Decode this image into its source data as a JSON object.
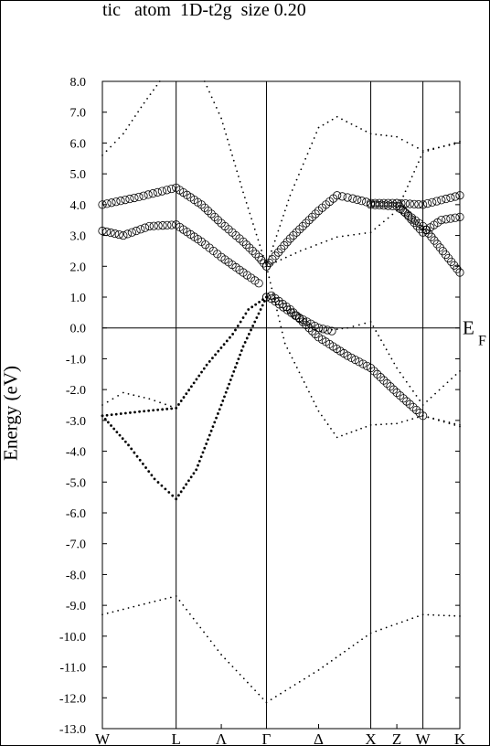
{
  "title": "tic   atom  1D-t2g  size 0.20",
  "chart_data": {
    "type": "scatter",
    "title": "tic   atom  1D-t2g  size 0.20",
    "ylabel": "Energy (eV)",
    "ylim": [
      -13.0,
      8.0
    ],
    "yticks": [
      "8.0",
      "7.0",
      "6.0",
      "5.0",
      "4.0",
      "3.0",
      "2.0",
      "1.0",
      "0.0",
      "-1.0",
      "-2.0",
      "-3.0",
      "-4.0",
      "-5.0",
      "-6.0",
      "-7.0",
      "-8.0",
      "-9.0",
      "-10.0",
      "-11.0",
      "-12.0",
      "-13.0"
    ],
    "kpoints": [
      {
        "label": "W",
        "x": 0.0
      },
      {
        "label": "L",
        "x": 0.707
      },
      {
        "label": "Λ",
        "x": 1.14
      },
      {
        "label": "Γ",
        "x": 1.573
      },
      {
        "label": "Δ",
        "x": 2.073
      },
      {
        "label": "X",
        "x": 2.573
      },
      {
        "label": "Z",
        "x": 2.823
      },
      {
        "label": "W",
        "x": 3.073
      },
      {
        "label": "K",
        "x": 3.427
      }
    ],
    "fermi_level": {
      "label_main": "E",
      "label_sub": "F",
      "energy": 0.0
    },
    "series": [
      {
        "style": "small-dots",
        "points": [
          [
            0,
            -9.3
          ],
          [
            0.35,
            -9.0
          ],
          [
            0.707,
            -8.7
          ],
          [
            1.14,
            -10.6
          ],
          [
            1.573,
            -12.15
          ],
          [
            2.073,
            -11.1
          ],
          [
            2.573,
            -9.9
          ],
          [
            2.823,
            -9.6
          ],
          [
            3.073,
            -9.3
          ],
          [
            3.427,
            -9.35
          ]
        ]
      },
      {
        "style": "small-dots",
        "points": [
          [
            0,
            5.6
          ],
          [
            0.2,
            6.3
          ],
          [
            0.4,
            7.3
          ],
          [
            0.55,
            8.0
          ]
        ]
      },
      {
        "style": "small-dots",
        "points": [
          [
            0.98,
            8.0
          ],
          [
            1.14,
            6.8
          ],
          [
            1.35,
            4.4
          ],
          [
            1.573,
            2.0
          ],
          [
            1.8,
            4.3
          ],
          [
            2.073,
            6.5
          ],
          [
            2.25,
            6.85
          ],
          [
            2.573,
            6.3
          ],
          [
            2.823,
            6.2
          ],
          [
            3.073,
            5.75
          ],
          [
            3.427,
            6.0
          ]
        ]
      },
      {
        "style": "small-dots",
        "points": [
          [
            1.573,
            2.0
          ],
          [
            1.9,
            2.5
          ],
          [
            2.25,
            2.95
          ],
          [
            2.573,
            3.1
          ],
          [
            2.823,
            3.8
          ],
          [
            3.073,
            5.7
          ],
          [
            3.427,
            6.05
          ]
        ]
      },
      {
        "style": "small-dots",
        "points": [
          [
            1.573,
            2.0
          ],
          [
            1.75,
            -0.5
          ],
          [
            2.073,
            -2.7
          ],
          [
            2.25,
            -3.55
          ],
          [
            2.573,
            -3.15
          ],
          [
            2.823,
            -3.1
          ],
          [
            3.073,
            -2.85
          ],
          [
            3.427,
            -3.2
          ]
        ]
      },
      {
        "style": "small-dots",
        "points": [
          [
            2.1,
            -0.1
          ],
          [
            2.35,
            0.0
          ],
          [
            2.573,
            0.2
          ],
          [
            2.823,
            -1.3
          ],
          [
            3.073,
            -2.5
          ],
          [
            3.427,
            -1.4
          ]
        ]
      },
      {
        "style": "small-dots",
        "points": [
          [
            0,
            -2.5
          ],
          [
            0.2,
            -2.1
          ],
          [
            0.45,
            -2.3
          ],
          [
            0.707,
            -2.6
          ]
        ]
      },
      {
        "style": "medium-dots",
        "points": [
          [
            0,
            -2.85
          ],
          [
            0.4,
            -2.7
          ],
          [
            0.707,
            -2.6
          ],
          [
            1.0,
            -1.2
          ],
          [
            1.25,
            -0.2
          ],
          [
            1.4,
            0.6
          ],
          [
            1.573,
            1.0
          ]
        ]
      },
      {
        "style": "medium-dots",
        "points": [
          [
            0,
            -2.85
          ],
          [
            0.25,
            -3.8
          ],
          [
            0.5,
            -4.9
          ],
          [
            0.707,
            -5.55
          ],
          [
            0.9,
            -4.6
          ],
          [
            1.14,
            -2.5
          ],
          [
            1.35,
            -0.6
          ],
          [
            1.573,
            1.0
          ]
        ]
      },
      {
        "style": "small-dots",
        "points": [
          [
            3.073,
            -2.85
          ],
          [
            3.427,
            -3.15
          ]
        ]
      },
      {
        "style": "circles",
        "points": [
          [
            0,
            4.0
          ],
          [
            0.35,
            4.25
          ],
          [
            0.707,
            4.55
          ],
          [
            0.95,
            4.0
          ],
          [
            1.14,
            3.4
          ],
          [
            1.35,
            2.8
          ],
          [
            1.5,
            2.3
          ],
          [
            1.573,
            2.0
          ]
        ]
      },
      {
        "style": "circles",
        "points": [
          [
            0,
            3.15
          ],
          [
            0.2,
            3.0
          ],
          [
            0.45,
            3.3
          ],
          [
            0.707,
            3.35
          ],
          [
            0.95,
            2.8
          ],
          [
            1.14,
            2.3
          ],
          [
            1.35,
            1.8
          ],
          [
            1.5,
            1.45
          ]
        ]
      },
      {
        "style": "circles",
        "points": [
          [
            1.573,
            1.0
          ],
          [
            1.62,
            1.05
          ],
          [
            1.8,
            0.6
          ],
          [
            2.073,
            -0.3
          ],
          [
            2.35,
            -0.9
          ],
          [
            2.573,
            -1.3
          ],
          [
            2.823,
            -2.1
          ],
          [
            3.073,
            -2.85
          ]
        ]
      },
      {
        "style": "circles",
        "points": [
          [
            1.573,
            1.0
          ],
          [
            1.62,
            0.95
          ],
          [
            1.85,
            0.4
          ],
          [
            2.073,
            0.0
          ],
          [
            2.2,
            -0.1
          ]
        ]
      },
      {
        "style": "circles",
        "points": [
          [
            1.573,
            2.0
          ],
          [
            1.8,
            2.9
          ],
          [
            2.073,
            3.8
          ],
          [
            2.25,
            4.3
          ],
          [
            2.4,
            4.2
          ],
          [
            2.573,
            4.05
          ],
          [
            2.823,
            4.05
          ],
          [
            3.073,
            4.0
          ],
          [
            3.427,
            4.3
          ]
        ]
      },
      {
        "style": "circles",
        "points": [
          [
            2.573,
            4.0
          ],
          [
            2.823,
            3.95
          ],
          [
            3.073,
            3.3
          ],
          [
            3.427,
            1.8
          ]
        ]
      },
      {
        "style": "circles",
        "points": [
          [
            2.823,
            4.05
          ],
          [
            3.073,
            3.1
          ],
          [
            3.25,
            3.5
          ],
          [
            3.427,
            3.6
          ]
        ]
      }
    ]
  }
}
